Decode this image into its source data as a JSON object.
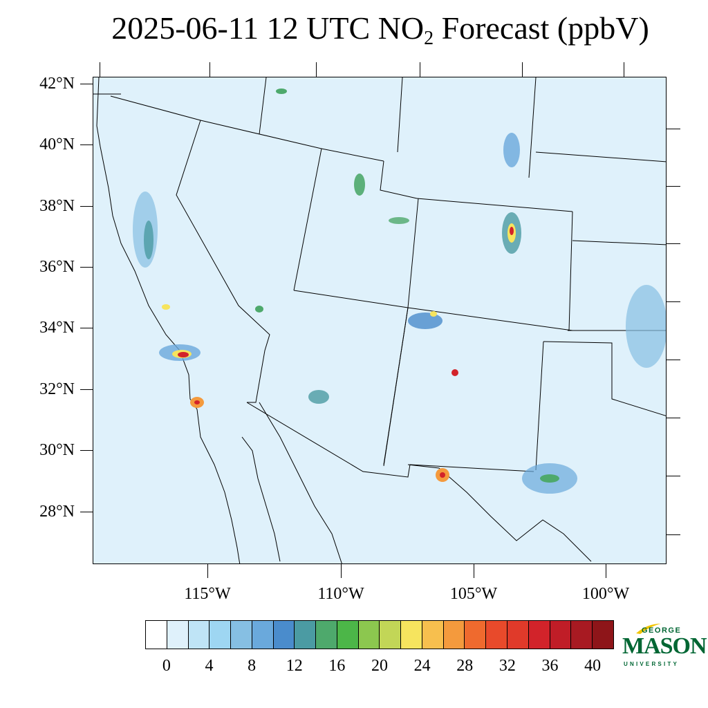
{
  "title": {
    "prefix": "2025-06-11 12 UTC NO",
    "subscript": "2",
    "suffix": " Forecast (ppbV)"
  },
  "map": {
    "lat_labels": [
      "42°N",
      "40°N",
      "38°N",
      "36°N",
      "34°N",
      "32°N",
      "30°N",
      "28°N"
    ],
    "lon_labels": [
      "115°W",
      "110°W",
      "105°W",
      "100°W"
    ],
    "background_color": "#dff1fb"
  },
  "colorbar": {
    "colors": [
      "#ffffff",
      "#dff1fb",
      "#bfe4f6",
      "#9ed6f2",
      "#86bfe3",
      "#6aa9dc",
      "#4a8ccc",
      "#4b9ba3",
      "#4ea96c",
      "#4cb648",
      "#8cc74f",
      "#c2d657",
      "#f6e45e",
      "#f7bf4e",
      "#f49a3d",
      "#ef6a2e",
      "#e84a2b",
      "#e03a2a",
      "#d2232a",
      "#c01d27",
      "#a81a22",
      "#8e1519"
    ],
    "labels": [
      "0",
      "4",
      "8",
      "12",
      "16",
      "20",
      "24",
      "28",
      "32",
      "36",
      "40"
    ]
  },
  "logo": {
    "line1": "GEORGE",
    "line2": "MASON",
    "line3": "UNIVERSITY",
    "color": "#006633",
    "accent": "#f2c500"
  }
}
